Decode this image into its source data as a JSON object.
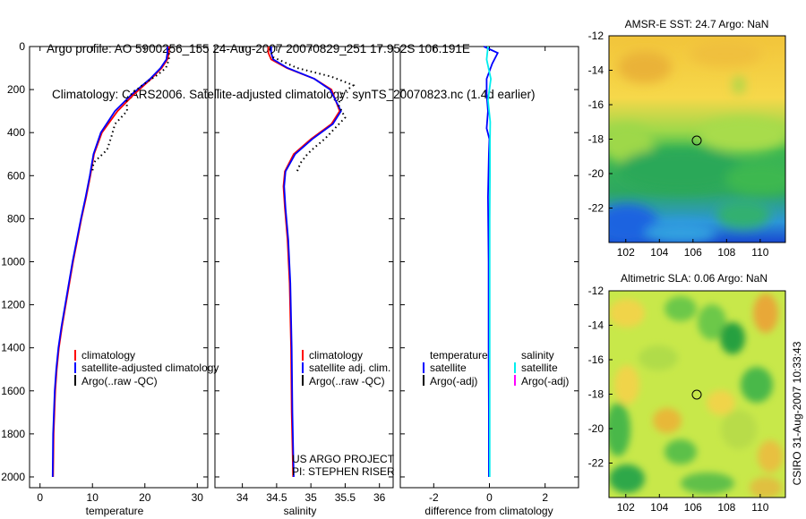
{
  "header": {
    "title_line1": "Argo profile: AO 5900256_155 24-Aug-2007 20070829_251 17.952S 106.191E",
    "title_line2": "Climatology: CARS2006. Satellite-adjusted climatology: synTS_20070823.nc (1.4d earlier)"
  },
  "side_stamp": "CSIRO 31-Aug-2007 10:33:43",
  "chart_data": [
    {
      "type": "line",
      "id": "temperature",
      "xlabel": "temperature",
      "ylabel": "",
      "xlim": [
        -2,
        32
      ],
      "ylim": [
        2050,
        0
      ],
      "xticks": [
        0,
        10,
        20,
        30
      ],
      "xtick_labels": [
        "0",
        "10",
        "20",
        "30"
      ],
      "yticks": [
        0,
        200,
        400,
        600,
        800,
        1000,
        1200,
        1400,
        1600,
        1800,
        2000
      ],
      "ytick_labels": [
        "0",
        "200",
        "400",
        "600",
        "800",
        "1000",
        "1200",
        "1400",
        "1600",
        "1800",
        "2000"
      ],
      "legend": [
        "climatology",
        "satellite-adjusted climatology",
        "Argo(..raw -QC)"
      ],
      "series": [
        {
          "name": "climatology",
          "color": "#ff0000",
          "style": "solid",
          "x": [
            24.6,
            24.6,
            24.3,
            23.2,
            21.2,
            18.0,
            14.8,
            11.8,
            10.3,
            9.6,
            8.8,
            7.9,
            7.1,
            6.3,
            5.6,
            4.9,
            4.2,
            3.6,
            3.2,
            2.9,
            2.6,
            2.5
          ],
          "y": [
            0,
            30,
            60,
            100,
            150,
            220,
            300,
            400,
            500,
            600,
            700,
            800,
            900,
            1000,
            1100,
            1200,
            1300,
            1400,
            1500,
            1600,
            1800,
            2000
          ]
        },
        {
          "name": "satellite-adjusted climatology",
          "color": "#0000ff",
          "style": "solid",
          "x": [
            24.3,
            24.3,
            24.1,
            23.0,
            21.0,
            17.6,
            14.3,
            11.6,
            10.2,
            9.5,
            8.7,
            7.8,
            7.0,
            6.2,
            5.5,
            4.8,
            4.1,
            3.5,
            3.1,
            2.8,
            2.5,
            2.4
          ],
          "y": [
            0,
            30,
            60,
            100,
            150,
            220,
            300,
            400,
            500,
            600,
            700,
            800,
            900,
            1000,
            1100,
            1200,
            1300,
            1400,
            1500,
            1600,
            1800,
            2000
          ]
        },
        {
          "name": "Argo(..raw -QC)",
          "color": "#000000",
          "style": "dotted",
          "x": [
            24.6,
            24.6,
            24.0,
            22.5,
            19.5,
            16.5,
            16.6,
            14.3,
            13.6,
            12.8,
            10.2,
            10.0
          ],
          "y": [
            10,
            60,
            100,
            130,
            180,
            240,
            300,
            360,
            420,
            480,
            540,
            580
          ]
        }
      ]
    },
    {
      "type": "line",
      "id": "salinity",
      "xlabel": "salinity",
      "ylabel": "",
      "xlim": [
        33.6,
        36.2
      ],
      "ylim": [
        2050,
        0
      ],
      "xticks": [
        34,
        34.5,
        35,
        35.5,
        36
      ],
      "xtick_labels": [
        "34",
        "34.5",
        "35",
        "35.5",
        "36"
      ],
      "legend": [
        "climatology",
        "satellite adj. clim.",
        "Argo(..raw -QC)"
      ],
      "annotations": [
        "US ARGO PROJECT",
        "PI: STEPHEN RISER"
      ],
      "series": [
        {
          "name": "climatology",
          "color": "#ff0000",
          "style": "solid",
          "x": [
            34.38,
            34.38,
            34.42,
            34.65,
            35.05,
            35.3,
            35.42,
            35.3,
            35.0,
            34.75,
            34.62,
            34.6,
            34.62,
            34.66,
            34.69,
            34.71,
            34.72,
            34.74
          ],
          "y": [
            0,
            30,
            60,
            100,
            150,
            200,
            300,
            360,
            430,
            500,
            580,
            650,
            750,
            900,
            1100,
            1400,
            1700,
            2000
          ]
        },
        {
          "name": "satellite adj. clim.",
          "color": "#0000ff",
          "style": "solid",
          "x": [
            34.42,
            34.42,
            34.45,
            34.66,
            35.05,
            35.28,
            35.44,
            35.32,
            35.02,
            34.77,
            34.63,
            34.61,
            34.63,
            34.67,
            34.7,
            34.72,
            34.73,
            34.75
          ],
          "y": [
            0,
            30,
            60,
            100,
            150,
            200,
            300,
            360,
            430,
            500,
            580,
            650,
            750,
            900,
            1100,
            1400,
            1700,
            2000
          ]
        },
        {
          "name": "Argo(..raw -QC)",
          "color": "#000000",
          "style": "dotted",
          "x": [
            34.4,
            34.45,
            34.8,
            35.3,
            35.62,
            35.45,
            35.4,
            35.5,
            35.35,
            35.2,
            35.05,
            34.95,
            34.85,
            34.8
          ],
          "y": [
            10,
            50,
            100,
            140,
            180,
            220,
            270,
            330,
            380,
            430,
            470,
            500,
            540,
            580
          ]
        }
      ]
    },
    {
      "type": "line",
      "id": "difference",
      "xlabel": "difference from climatology",
      "ylabel": "",
      "xlim": [
        -3.2,
        3.2
      ],
      "ylim": [
        2050,
        0
      ],
      "xticks": [
        -2,
        0,
        2
      ],
      "xtick_labels": [
        "-2",
        "0",
        "2"
      ],
      "legend_groups": [
        {
          "title": "temperature",
          "entries": [
            "satellite",
            "Argo(-adj)"
          ]
        },
        {
          "title": "salinity",
          "entries": [
            "satellite",
            "Argo(-adj)"
          ]
        }
      ],
      "series": [
        {
          "name": "temperature satellite",
          "color": "#0000ff",
          "style": "solid",
          "x": [
            -0.2,
            0.3,
            0.1,
            -0.1,
            -0.1,
            -0.05,
            -0.1,
            0.0,
            -0.02,
            -0.05,
            -0.03,
            -0.03,
            -0.02,
            -0.02
          ],
          "y": [
            0,
            30,
            80,
            150,
            220,
            300,
            380,
            430,
            500,
            700,
            1000,
            1400,
            1700,
            2000
          ]
        },
        {
          "name": "salinity satellite",
          "color": "#00eeee",
          "style": "solid",
          "x": [
            -0.05,
            -0.1,
            0.05,
            -0.05,
            0.03,
            0.02,
            0.02,
            0.01,
            0.01,
            0.01,
            0.01
          ],
          "y": [
            0,
            60,
            150,
            250,
            350,
            450,
            600,
            800,
            1200,
            1600,
            2000
          ]
        }
      ]
    },
    {
      "type": "heatmap",
      "id": "sst",
      "title": "AMSR-E SST: 24.7 Argo: NaN",
      "xlim": [
        101,
        111.5
      ],
      "ylim": [
        -24,
        -12
      ],
      "xticks": [
        102,
        104,
        106,
        108,
        110
      ],
      "xtick_labels": [
        "102",
        "104",
        "106",
        "108",
        "110"
      ],
      "yticks": [
        -12,
        -14,
        -16,
        -18,
        -20,
        -22
      ],
      "ytick_labels": [
        "-12",
        "-14",
        "-16",
        "-18",
        "-20",
        "-22"
      ],
      "marker": {
        "lon": 106.2,
        "lat": -18.0
      }
    },
    {
      "type": "heatmap",
      "id": "sla",
      "title": "Altimetric SLA: 0.06 Argo: NaN",
      "xlim": [
        101,
        111.5
      ],
      "ylim": [
        -24,
        -12
      ],
      "xticks": [
        102,
        104,
        106,
        108,
        110
      ],
      "xtick_labels": [
        "102",
        "104",
        "106",
        "108",
        "110"
      ],
      "yticks": [
        -12,
        -14,
        -16,
        -18,
        -20,
        -22
      ],
      "ytick_labels": [
        "-12",
        "-14",
        "-16",
        "-18",
        "-20",
        "-22"
      ],
      "marker": {
        "lon": 106.2,
        "lat": -18.0
      }
    }
  ]
}
